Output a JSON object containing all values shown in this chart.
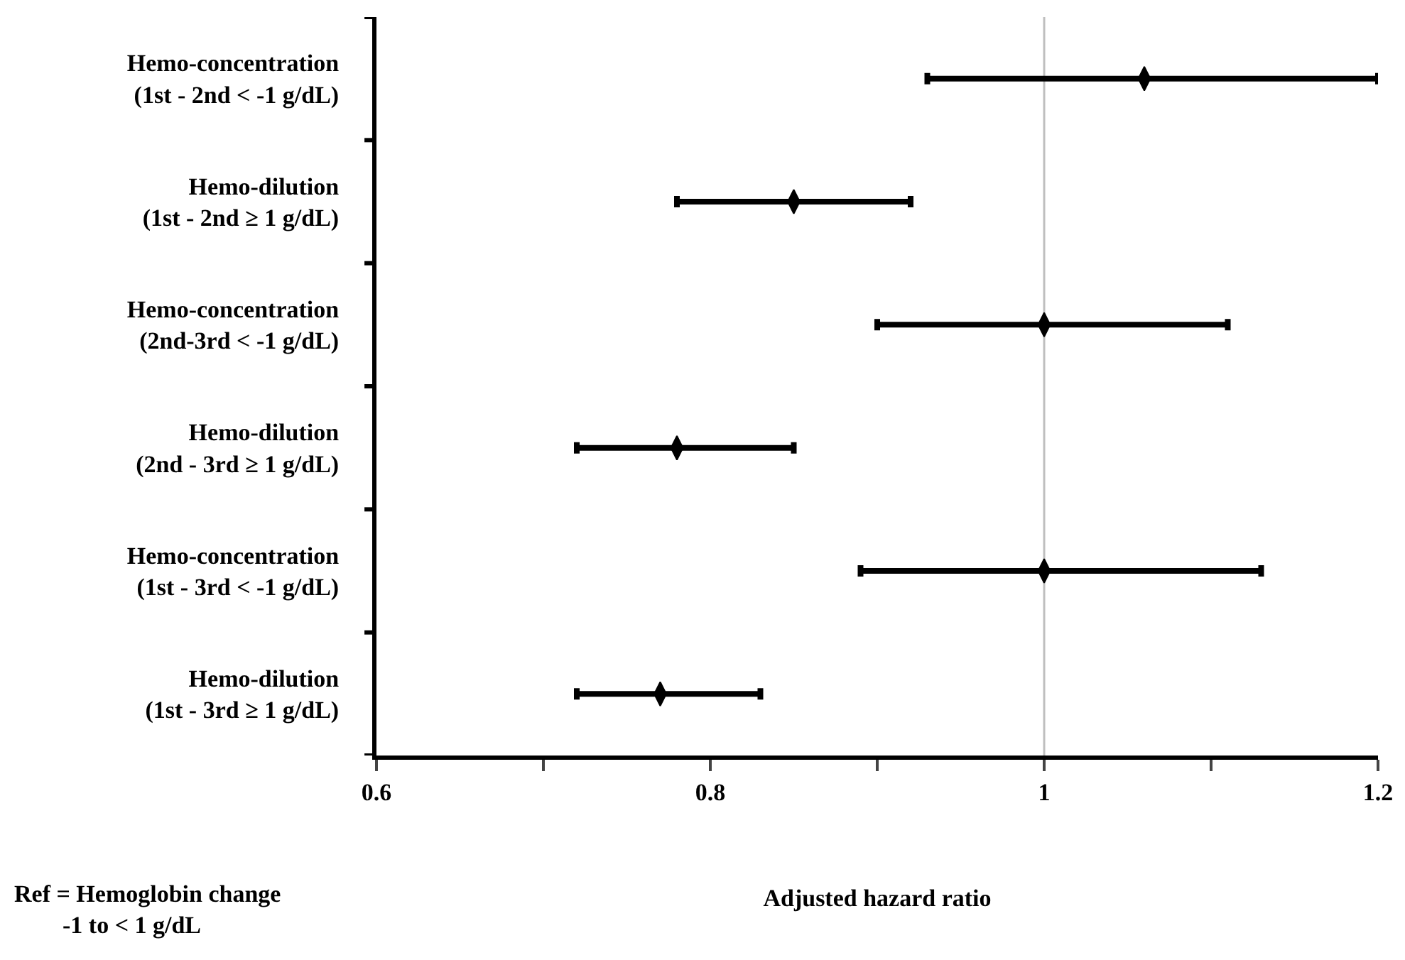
{
  "chart_data": {
    "type": "scatter",
    "orientation": "horizontal",
    "xlabel": "Adjusted hazard ratio",
    "categories": [
      "Hemo-concentration\n(1st - 2nd < -1 g/dL)",
      "Hemo-dilution\n(1st - 2nd ≥ 1 g/dL)",
      "Hemo-concentration\n(2nd-3rd < -1 g/dL)",
      "Hemo-dilution\n(2nd - 3rd ≥ 1 g/dL)",
      "Hemo-concentration\n(1st - 3rd < -1 g/dL)",
      "Hemo-dilution\n(1st - 3rd ≥ 1 g/dL)"
    ],
    "series": [
      {
        "color": "#000000",
        "values": [
          1.06,
          0.85,
          1.0,
          0.78,
          1.0,
          0.77
        ],
        "errors": [
          [
            0.93,
            1.2
          ],
          [
            0.78,
            0.92
          ],
          [
            0.9,
            1.11
          ],
          [
            0.72,
            0.85
          ],
          [
            0.89,
            1.13
          ],
          [
            0.72,
            0.83
          ]
        ]
      }
    ],
    "xlim": [
      0.6,
      1.2
    ],
    "xticks": [
      0.6,
      {
        "value": 0.7,
        "label": null
      },
      0.8,
      {
        "value": 0.9,
        "label": null
      },
      1,
      {
        "value": 1.1,
        "label": null
      },
      1.2
    ],
    "ref_lines": [
      {
        "axis": "x",
        "value": 1,
        "color": "#bfbfbf"
      }
    ],
    "annotations": [
      "Ref = Hemoglobin change\n-1 to < 1 g/dL"
    ]
  }
}
